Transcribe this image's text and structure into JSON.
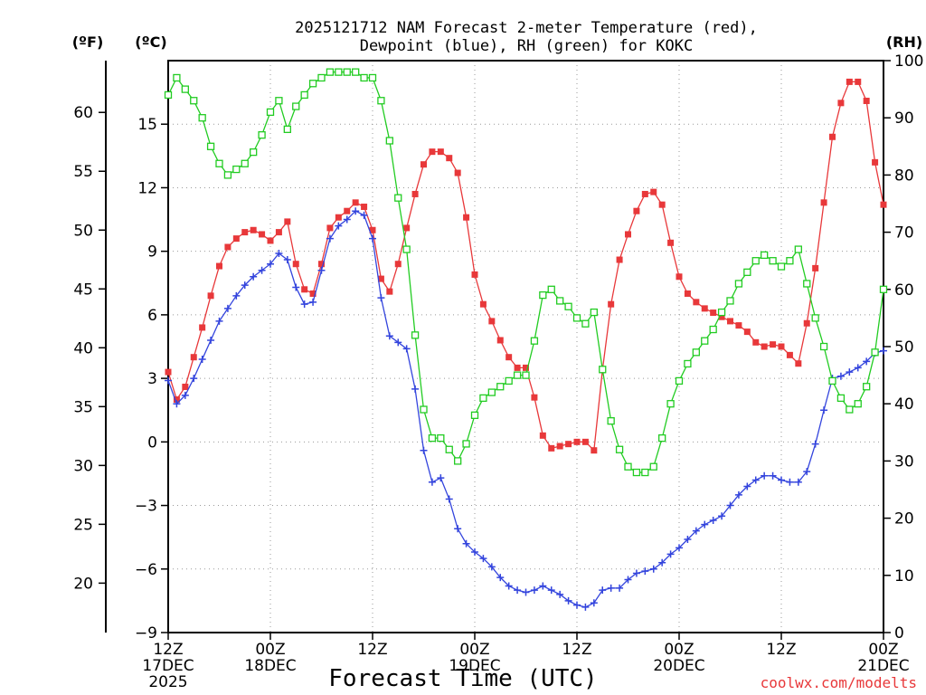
{
  "chart_data": {
    "type": "line",
    "title_line1": "2025121712 NAM Forecast 2-meter Temperature (red),",
    "title_line2": "Dewpoint (blue), RH (green) for KOKC",
    "xlabel": "Forecast Time (UTC)",
    "credit": "coolwx.com/modelts",
    "unit_f": "(ºF)",
    "unit_c": "(ºC)",
    "unit_rh": "(RH)",
    "x_range_hours": [
      0,
      84
    ],
    "ylim_c": [
      -9,
      18
    ],
    "ylim_rh": [
      0,
      100
    ],
    "c_ticks": [
      -9,
      -6,
      -3,
      0,
      3,
      6,
      9,
      12,
      15
    ],
    "c_tick_labels": [
      "−9",
      "−6",
      "−3",
      "0",
      "3",
      "6",
      "9",
      "12",
      "15"
    ],
    "f_ticks": [
      20,
      25,
      30,
      35,
      40,
      45,
      50,
      55,
      60
    ],
    "rh_ticks": [
      0,
      10,
      20,
      30,
      40,
      50,
      60,
      70,
      80,
      90,
      100
    ],
    "x_ticks": [
      {
        "hour": 0,
        "line1": "12Z",
        "line2": "17DEC",
        "line3": "2025"
      },
      {
        "hour": 12,
        "line1": "00Z",
        "line2": "18DEC",
        "line3": ""
      },
      {
        "hour": 24,
        "line1": "12Z",
        "line2": "",
        "line3": ""
      },
      {
        "hour": 36,
        "line1": "00Z",
        "line2": "19DEC",
        "line3": ""
      },
      {
        "hour": 48,
        "line1": "12Z",
        "line2": "",
        "line3": ""
      },
      {
        "hour": 60,
        "line1": "00Z",
        "line2": "20DEC",
        "line3": ""
      },
      {
        "hour": 72,
        "line1": "12Z",
        "line2": "",
        "line3": ""
      },
      {
        "hour": 84,
        "line1": "00Z",
        "line2": "21DEC",
        "line3": ""
      }
    ],
    "colors": {
      "temperature": "#e8383a",
      "dewpoint": "#3344dd",
      "rh": "#22cc22",
      "grid": "#999999"
    },
    "series": [
      {
        "name": "Temperature",
        "unit": "C",
        "values": [
          3.3,
          2.0,
          2.6,
          4.0,
          5.4,
          6.9,
          8.3,
          9.2,
          9.6,
          9.9,
          10.0,
          9.8,
          9.5,
          9.9,
          10.4,
          8.4,
          7.2,
          7.0,
          8.4,
          10.1,
          10.6,
          10.9,
          11.3,
          11.1,
          10.0,
          7.7,
          7.1,
          8.4,
          10.1,
          11.7,
          13.1,
          13.7,
          13.7,
          13.4,
          12.7,
          10.6,
          7.9,
          6.5,
          5.7,
          4.8,
          4.0,
          3.5,
          3.5,
          2.1,
          0.3,
          -0.3,
          -0.2,
          -0.1,
          0.0,
          0.0,
          -0.4,
          3.4,
          6.5,
          8.6,
          9.8,
          10.9,
          11.7,
          11.8,
          11.2,
          9.4,
          7.8,
          7.0,
          6.6,
          6.3,
          6.1,
          5.9,
          5.7,
          5.5,
          5.2,
          4.7,
          4.5,
          4.6,
          4.5,
          4.1,
          3.7,
          5.6,
          8.2,
          11.3,
          14.4,
          16.0,
          17.0,
          17.0,
          16.1,
          13.2,
          11.2
        ]
      },
      {
        "name": "Dewpoint",
        "unit": "C",
        "values": [
          2.9,
          1.8,
          2.2,
          3.0,
          3.9,
          4.8,
          5.7,
          6.3,
          6.9,
          7.4,
          7.8,
          8.1,
          8.4,
          8.9,
          8.6,
          7.3,
          6.5,
          6.6,
          8.1,
          9.6,
          10.2,
          10.5,
          10.9,
          10.7,
          9.6,
          6.8,
          5.0,
          4.7,
          4.4,
          2.5,
          -0.4,
          -1.9,
          -1.7,
          -2.7,
          -4.1,
          -4.8,
          -5.2,
          -5.5,
          -5.9,
          -6.4,
          -6.8,
          -7.0,
          -7.1,
          -7.0,
          -6.8,
          -7.0,
          -7.2,
          -7.5,
          -7.7,
          -7.8,
          -7.6,
          -7.0,
          -6.9,
          -6.9,
          -6.5,
          -6.2,
          -6.1,
          -6.0,
          -5.7,
          -5.3,
          -5.0,
          -4.6,
          -4.2,
          -3.9,
          -3.7,
          -3.5,
          -3.0,
          -2.5,
          -2.1,
          -1.8,
          -1.6,
          -1.6,
          -1.8,
          -1.9,
          -1.9,
          -1.4,
          -0.1,
          1.5,
          3.0,
          3.1,
          3.3,
          3.5,
          3.8,
          4.2,
          4.3
        ]
      },
      {
        "name": "RH",
        "unit": "%",
        "values": [
          94,
          97,
          95,
          93,
          90,
          85,
          82,
          80,
          81,
          82,
          84,
          87,
          91,
          93,
          88,
          92,
          94,
          96,
          97,
          98,
          98,
          98,
          98,
          97,
          97,
          93,
          86,
          76,
          67,
          52,
          39,
          34,
          34,
          32,
          30,
          33,
          38,
          41,
          42,
          43,
          44,
          45,
          45,
          51,
          59,
          60,
          58,
          57,
          55,
          54,
          56,
          46,
          37,
          32,
          29,
          28,
          28,
          29,
          34,
          40,
          44,
          47,
          49,
          51,
          53,
          56,
          58,
          61,
          63,
          65,
          66,
          65,
          64,
          65,
          67,
          61,
          55,
          50,
          44,
          41,
          39,
          40,
          43,
          49,
          60
        ]
      }
    ]
  }
}
